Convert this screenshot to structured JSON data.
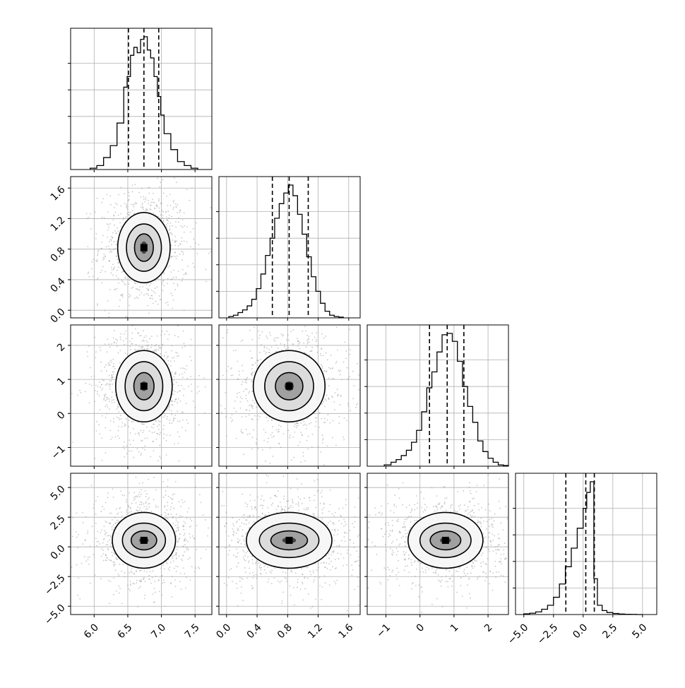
{
  "chart_data": {
    "type": "corner",
    "params": [
      {
        "index": 0,
        "range": [
          5.65,
          7.75
        ],
        "ticks": [
          6.0,
          6.5,
          7.0,
          7.5
        ],
        "tick_labels": [
          "6.0",
          "6.5",
          "7.0",
          "7.5"
        ],
        "median": 6.74,
        "q16": 6.51,
        "q84": 6.96
      },
      {
        "index": 1,
        "range": [
          -0.1,
          1.75
        ],
        "ticks": [
          0.0,
          0.4,
          0.8,
          1.2,
          1.6
        ],
        "tick_labels": [
          "0.0",
          "0.4",
          "0.8",
          "1.2",
          "1.6"
        ],
        "median": 0.82,
        "q16": 0.6,
        "q84": 1.07
      },
      {
        "index": 2,
        "range": [
          -1.55,
          2.6
        ],
        "ticks": [
          -1,
          0,
          1,
          2
        ],
        "tick_labels": [
          "−1",
          "0",
          "1",
          "2"
        ],
        "median": 0.8,
        "q16": 0.28,
        "q84": 1.29
      },
      {
        "index": 3,
        "range": [
          -5.7,
          6.2
        ],
        "ticks": [
          -5.0,
          -2.5,
          0.0,
          2.5,
          5.0
        ],
        "tick_labels": [
          "−5.0",
          "−2.5",
          "0.0",
          "2.5",
          "5.0"
        ],
        "median": 0.22,
        "q16": -1.46,
        "q84": 0.94
      }
    ],
    "histograms": [
      {
        "param": 0,
        "edges": [
          5.94,
          6.04,
          6.14,
          6.24,
          6.34,
          6.44,
          6.49,
          6.54,
          6.59,
          6.64,
          6.69,
          6.74,
          6.79,
          6.84,
          6.89,
          6.94,
          6.99,
          7.04,
          7.14,
          7.24,
          7.34,
          7.44,
          7.54
        ],
        "counts": [
          0.01,
          0.03,
          0.09,
          0.18,
          0.35,
          0.62,
          0.7,
          0.86,
          0.92,
          0.88,
          0.98,
          1.0,
          0.9,
          0.84,
          0.7,
          0.55,
          0.41,
          0.27,
          0.15,
          0.06,
          0.03,
          0.01
        ]
      },
      {
        "param": 1,
        "edges": [
          0.03,
          0.09,
          0.15,
          0.21,
          0.27,
          0.33,
          0.39,
          0.45,
          0.51,
          0.57,
          0.63,
          0.69,
          0.75,
          0.81,
          0.87,
          0.93,
          0.99,
          1.05,
          1.11,
          1.17,
          1.23,
          1.29,
          1.35,
          1.41,
          1.47,
          1.53
        ],
        "counts": [
          0.01,
          0.02,
          0.04,
          0.06,
          0.09,
          0.14,
          0.22,
          0.33,
          0.47,
          0.6,
          0.75,
          0.86,
          0.94,
          1.0,
          0.92,
          0.78,
          0.63,
          0.46,
          0.31,
          0.2,
          0.11,
          0.05,
          0.02,
          0.01,
          0.005
        ]
      },
      {
        "param": 2,
        "edges": [
          -1.05,
          -0.85,
          -0.7,
          -0.55,
          -0.4,
          -0.25,
          -0.1,
          0.05,
          0.2,
          0.35,
          0.5,
          0.65,
          0.8,
          0.95,
          1.1,
          1.25,
          1.4,
          1.55,
          1.7,
          1.85,
          2.0,
          2.15,
          2.3,
          2.45,
          2.6
        ],
        "counts": [
          0.01,
          0.03,
          0.05,
          0.08,
          0.12,
          0.18,
          0.27,
          0.41,
          0.59,
          0.71,
          0.86,
          0.99,
          1.0,
          0.94,
          0.79,
          0.6,
          0.45,
          0.33,
          0.19,
          0.11,
          0.06,
          0.03,
          0.01,
          0.005
        ]
      },
      {
        "param": 3,
        "edges": [
          -5.0,
          -4.5,
          -4.0,
          -3.5,
          -3.0,
          -2.5,
          -2.0,
          -1.5,
          -1.0,
          -0.5,
          0.0,
          0.3,
          0.6,
          0.9,
          1.2,
          1.6,
          2.0,
          2.5,
          3.0,
          3.5,
          4.0,
          4.5,
          5.0
        ],
        "counts": [
          0.005,
          0.01,
          0.02,
          0.04,
          0.07,
          0.13,
          0.23,
          0.36,
          0.5,
          0.65,
          0.8,
          0.92,
          1.0,
          0.27,
          0.07,
          0.03,
          0.015,
          0.008,
          0.004,
          0.002,
          0.001,
          0.0
        ]
      }
    ],
    "contours": [
      {
        "px": 0,
        "py": 1,
        "cx": 6.74,
        "cy": 0.82,
        "levels": [
          {
            "sx": 0.39,
            "sy": 0.46
          },
          {
            "sx": 0.26,
            "sy": 0.31
          },
          {
            "sx": 0.14,
            "sy": 0.18
          },
          {
            "sx": 0.05,
            "sy": 0.08
          }
        ]
      },
      {
        "px": 0,
        "py": 2,
        "cx": 6.74,
        "cy": 0.8,
        "levels": [
          {
            "sx": 0.42,
            "sy": 1.05
          },
          {
            "sx": 0.28,
            "sy": 0.72
          },
          {
            "sx": 0.15,
            "sy": 0.4
          },
          {
            "sx": 0.05,
            "sy": 0.14
          }
        ]
      },
      {
        "px": 1,
        "py": 2,
        "cx": 0.82,
        "cy": 0.8,
        "levels": [
          {
            "sx": 0.47,
            "sy": 1.05
          },
          {
            "sx": 0.32,
            "sy": 0.72
          },
          {
            "sx": 0.18,
            "sy": 0.4
          },
          {
            "sx": 0.06,
            "sy": 0.14
          }
        ]
      },
      {
        "px": 0,
        "py": 3,
        "cx": 6.74,
        "cy": 0.55,
        "levels": [
          {
            "sx": 0.47,
            "sy": 2.35
          },
          {
            "sx": 0.32,
            "sy": 1.45
          },
          {
            "sx": 0.19,
            "sy": 0.8
          },
          {
            "sx": 0.07,
            "sy": 0.25
          }
        ]
      },
      {
        "px": 1,
        "py": 3,
        "cx": 0.82,
        "cy": 0.55,
        "levels": [
          {
            "sx": 0.56,
            "sy": 2.35
          },
          {
            "sx": 0.39,
            "sy": 1.45
          },
          {
            "sx": 0.24,
            "sy": 0.8
          },
          {
            "sx": 0.09,
            "sy": 0.25
          }
        ]
      },
      {
        "px": 2,
        "py": 3,
        "cx": 0.75,
        "cy": 0.55,
        "levels": [
          {
            "sx": 1.1,
            "sy": 2.35
          },
          {
            "sx": 0.75,
            "sy": 1.45
          },
          {
            "sx": 0.45,
            "sy": 0.8
          },
          {
            "sx": 0.16,
            "sy": 0.25
          }
        ]
      }
    ],
    "xlabel": "",
    "ylabel": "",
    "title": "",
    "grid": true
  }
}
